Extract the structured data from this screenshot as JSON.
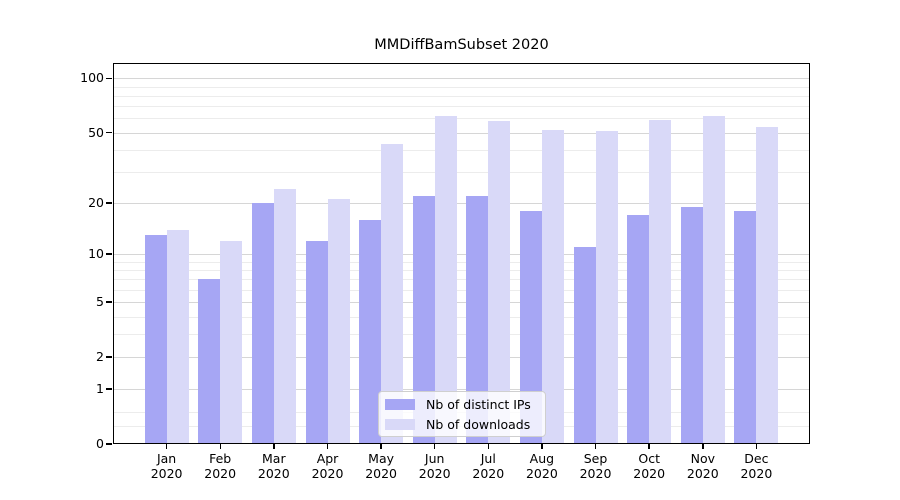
{
  "title": "MMDiffBamSubset 2020",
  "chart_data": {
    "type": "bar",
    "title": "MMDiffBamSubset 2020",
    "categories": [
      "Jan",
      "Feb",
      "Mar",
      "Apr",
      "May",
      "Jun",
      "Jul",
      "Aug",
      "Sep",
      "Oct",
      "Nov",
      "Dec"
    ],
    "category_year": "2020",
    "series": [
      {
        "name": "Nb of distinct IPs",
        "color": "#a6a6f4",
        "values": [
          13,
          7,
          20,
          12,
          16,
          22,
          22,
          18,
          11,
          17,
          19,
          18
        ]
      },
      {
        "name": "Nb of downloads",
        "color": "#d9d9f8",
        "values": [
          14,
          12,
          24,
          21,
          43,
          62,
          58,
          52,
          51,
          59,
          62,
          54
        ]
      }
    ],
    "y_scale": "log10(1+x)",
    "y_ticks": [
      0,
      1,
      2,
      5,
      10,
      20,
      50,
      100
    ],
    "y_minor_gridlines": [
      0.25,
      0.5,
      3,
      4,
      6,
      7,
      8,
      9,
      30,
      40,
      60,
      70,
      80,
      90
    ],
    "ylim": [
      0,
      120
    ],
    "xlabel": "",
    "ylabel": "",
    "grid": true,
    "legend_position": "bottom-center",
    "colors": {
      "major_grid": "#d6d6d6",
      "minor_grid": "#ececec",
      "spine": "#000000",
      "text": "#000000",
      "background": "#ffffff"
    }
  }
}
